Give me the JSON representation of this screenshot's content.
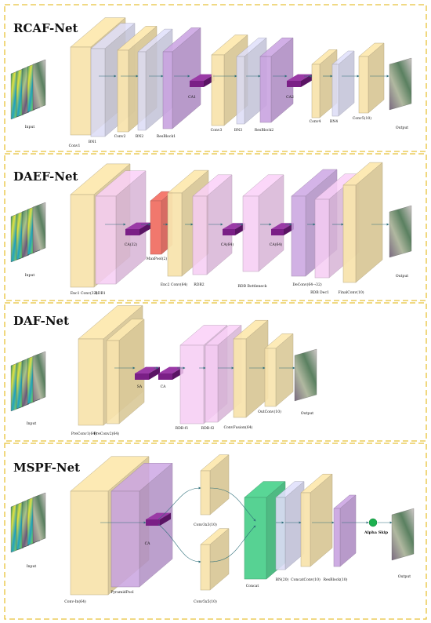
{
  "panels": [
    {
      "title": "RCAF-Net",
      "input_label": "Input",
      "output_label": "Output",
      "labels": [
        "Conv1",
        "BN1",
        "Conv2",
        "BN2",
        "ResBlock1",
        "CA1",
        "Conv3",
        "BN3",
        "ResBlock2",
        "CA2",
        "Conv4",
        "BN4",
        "Conv5(10)"
      ]
    },
    {
      "title": "DAEF-Net",
      "input_label": "Input",
      "output_label": "Output",
      "labels": [
        "Enc1 Conv(32)",
        "RDB1",
        "CA(32)",
        "MaxPool(2)",
        "Enc2 Conv(64)",
        "RDB2",
        "CA(64)",
        "RDB Bottleneck",
        "CA(64)",
        "DeConv(64→32)",
        "RDB Dec1",
        "FinalConv(10)"
      ]
    },
    {
      "title": "DAF-Net",
      "input_label": "Input",
      "output_label": "Output",
      "labels": [
        "PreConv1(64)",
        "PreConv2(64)",
        "SA",
        "CA",
        "RDB-f1",
        "RDB-f2",
        "ConvFusion(64)",
        "OutConv(10)"
      ]
    },
    {
      "title": "MSPF-Net",
      "input_label": "Input",
      "output_label": "Output",
      "labels": [
        "Conv-In(64)",
        "PyramidPool",
        "CA",
        "Conv3x3(10)",
        "Conv5x5(10)",
        "Concat",
        "BN(20)",
        "ConcatConv(10)",
        "ResBlock(10)",
        "Alpha Skip"
      ]
    }
  ],
  "colors": {
    "border": "#e8c23a",
    "conv": "#f8e4ae",
    "bn": "#dcdcf6",
    "resblock": "#c9a4e0",
    "attention": "#7a1f86",
    "rdb": "#f6cdf4",
    "pool": "#f06a5e",
    "concat": "#4fd08e",
    "arrow": "#2e6f7a",
    "skip": "#1db04f"
  }
}
